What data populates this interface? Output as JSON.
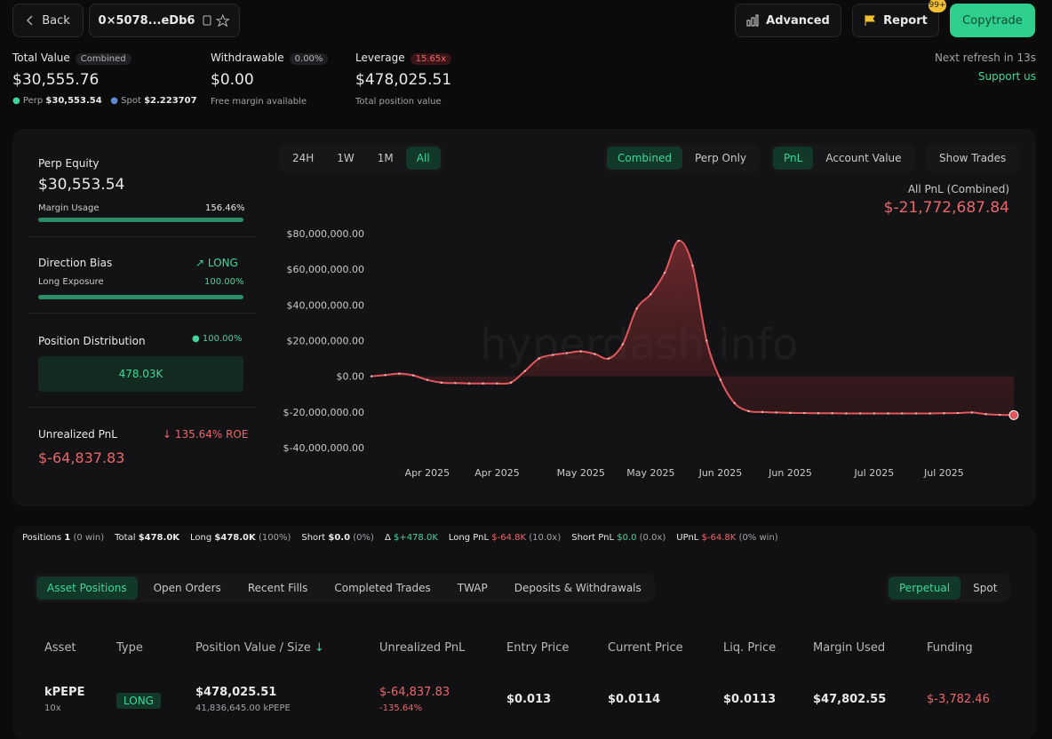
{
  "header": {
    "back": "Back",
    "address": "0×5078...eDb6",
    "advanced": "Advanced",
    "report": "Report",
    "badge": "99+",
    "copytrade": "Copytrade"
  },
  "summary": {
    "total_value_label": "Total Value",
    "combined_tag": "Combined",
    "total_value": "$30,555.76",
    "perp_label": "Perp",
    "perp_value": "$30,553.54",
    "spot_label": "Spot",
    "spot_value": "$2.223707",
    "withdrawable_label": "Withdrawable",
    "withdrawable_tag": "0.00%",
    "withdrawable_value": "$0.00",
    "withdrawable_note": "Free margin available",
    "leverage_label": "Leverage",
    "leverage_tag": "15.65x",
    "leverage_value": "$478,025.51",
    "leverage_note": "Total position value",
    "refresh": "Next refresh in 13s",
    "support": "Support us"
  },
  "side": {
    "perp_equity_label": "Perp Equity",
    "perp_equity": "$30,553.54",
    "margin_usage_label": "Margin Usage",
    "margin_usage": "156.46%",
    "direction_label": "Direction Bias",
    "direction": "LONG",
    "long_exposure_label": "Long Exposure",
    "long_exposure": "100.00%",
    "distribution_label": "Position Distribution",
    "distribution_pct": "100.00%",
    "distribution_bar": "478.03K",
    "upnl_label": "Unrealized PnL",
    "roe": "135.64% ROE",
    "upnl": "$-64,837.83"
  },
  "controls": {
    "ranges": [
      "24H",
      "1W",
      "1M",
      "All"
    ],
    "modes": [
      "Combined",
      "Perp Only"
    ],
    "metrics": [
      "PnL",
      "Account Value"
    ],
    "show_trades": "Show Trades",
    "watermark": "hyperdash.info"
  },
  "chart_data": {
    "type": "line",
    "title": "All PnL (Combined)",
    "subtitle": "$-21,772,687.84",
    "categories": [
      null,
      null,
      null,
      null,
      "Apr 2025",
      null,
      null,
      null,
      null,
      "Apr 2025",
      null,
      null,
      null,
      null,
      null,
      "May 2025",
      null,
      null,
      null,
      null,
      "May 2025",
      null,
      null,
      null,
      null,
      "Jun 2025",
      null,
      null,
      null,
      null,
      "Jun 2025",
      null,
      null,
      null,
      null,
      null,
      "Jul 2025",
      null,
      null,
      null,
      null,
      "Jul 2025",
      null,
      null,
      null,
      null,
      null
    ],
    "series": [
      {
        "name": "PnL",
        "color": "#e2575c",
        "values": [
          0,
          700000,
          1500000,
          500000,
          -2000000,
          -3500000,
          -3800000,
          -4000000,
          -4000000,
          -4000000,
          -3500000,
          3000000,
          10000000,
          12000000,
          13000000,
          14000000,
          12500000,
          10000000,
          18000000,
          38000000,
          46000000,
          58000000,
          76000000,
          62000000,
          20000000,
          -2000000,
          -15000000,
          -19500000,
          -20000000,
          -20300000,
          -20500000,
          -20600000,
          -20700000,
          -20700000,
          -20800000,
          -20800000,
          -20800000,
          -20800000,
          -20800000,
          -20800000,
          -20800000,
          -20700000,
          -20600000,
          -20300000,
          -21200000,
          -21600000,
          -21772687.84
        ]
      }
    ],
    "ylim": [
      -40000000,
      80000000
    ],
    "yticks": [
      {
        "value": 80000000,
        "label": "$80,000,000.00"
      },
      {
        "value": 60000000,
        "label": "$60,000,000.00"
      },
      {
        "value": 40000000,
        "label": "$40,000,000.00"
      },
      {
        "value": 20000000,
        "label": "$20,000,000.00"
      },
      {
        "value": 0,
        "label": "$0.00"
      },
      {
        "value": -20000000,
        "label": "$-20,000,000.00"
      },
      {
        "value": -40000000,
        "label": "$-40,000,000.00"
      }
    ],
    "grid": false
  },
  "stats": {
    "positions_label": "Positions",
    "positions": "1",
    "positions_note": "(0 win)",
    "total_label": "Total",
    "total": "$478.0K",
    "long_label": "Long",
    "long": "$478.0K",
    "long_note": "(100%)",
    "short_label": "Short",
    "short": "$0.0",
    "short_note": "(0%)",
    "delta_label": "Δ",
    "delta": "$+478.0K",
    "long_pnl_label": "Long PnL",
    "long_pnl": "$-64.8K",
    "long_pnl_note": "(10.0x)",
    "short_pnl_label": "Short PnL",
    "short_pnl": "$0.0",
    "short_pnl_note": "(0.0x)",
    "upnl_label": "UPnL",
    "upnl": "$-64.8K",
    "upnl_note": "(0% win)"
  },
  "tabs": [
    "Asset Positions",
    "Open Orders",
    "Recent Fills",
    "Completed Trades",
    "TWAP",
    "Deposits & Withdrawals"
  ],
  "market_toggle": [
    "Perpetual",
    "Spot"
  ],
  "table": {
    "columns": [
      "Asset",
      "Type",
      "Position Value / Size",
      "Unrealized PnL",
      "Entry Price",
      "Current Price",
      "Liq. Price",
      "Margin Used",
      "Funding"
    ],
    "rows": [
      {
        "asset": "kPEPE",
        "leverage": "10x",
        "type": "LONG",
        "value": "$478,025.51",
        "size": "41,836,645.00 kPEPE",
        "upnl": "$-64,837.83",
        "upnl_pct": "-135.64%",
        "entry": "$0.013",
        "current": "$0.0114",
        "liq": "$0.0113",
        "margin": "$47,802.55",
        "funding": "$-3,782.46"
      }
    ]
  }
}
